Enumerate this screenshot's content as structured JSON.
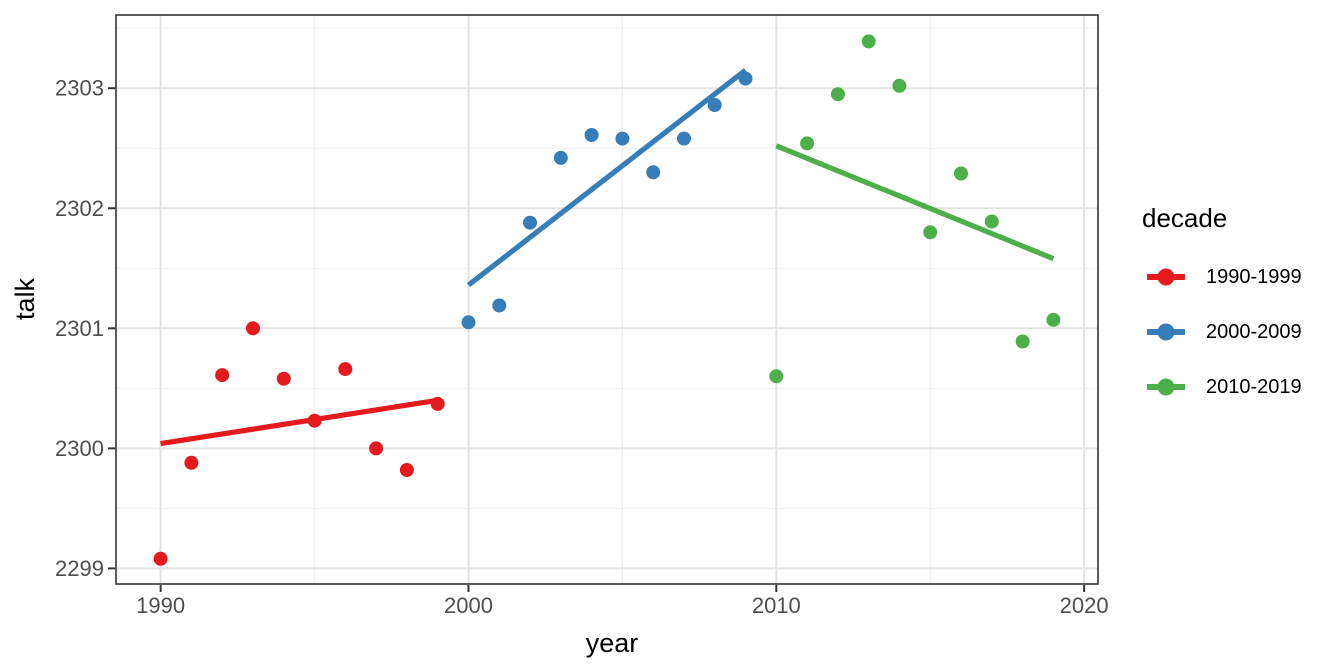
{
  "chart_data": {
    "type": "scatter",
    "title": "",
    "xlabel": "year",
    "ylabel": "talk",
    "legend_title": "decade",
    "legend_position": "right",
    "grid": true,
    "xlim": [
      1988.55,
      2020.45
    ],
    "ylim": [
      2298.87,
      2303.61
    ],
    "x_ticks": [
      {
        "value": 1990,
        "label": "1990"
      },
      {
        "value": 2000,
        "label": "2000"
      },
      {
        "value": 2010,
        "label": "2010"
      },
      {
        "value": 2020,
        "label": "2020"
      }
    ],
    "y_ticks": [
      {
        "value": 2299,
        "label": "2299"
      },
      {
        "value": 2300,
        "label": "2300"
      },
      {
        "value": 2301,
        "label": "2301"
      },
      {
        "value": 2302,
        "label": "2302"
      },
      {
        "value": 2303,
        "label": "2303"
      }
    ],
    "x_minor_ticks": [
      1995,
      2005,
      2015
    ],
    "y_minor_ticks": [
      2299.5,
      2300.5,
      2301.5,
      2302.5,
      2303.5
    ],
    "series": [
      {
        "name": "1990-1999",
        "color": "#E41A1C",
        "x": [
          1990,
          1991,
          1992,
          1993,
          1994,
          1995,
          1996,
          1997,
          1998,
          1999
        ],
        "y": [
          2299.08,
          2299.88,
          2300.61,
          2301.0,
          2300.58,
          2300.23,
          2300.66,
          2300.0,
          2299.82,
          2300.37
        ],
        "trend": {
          "x": [
            1990,
            1999
          ],
          "y": [
            2300.04,
            2300.4
          ]
        }
      },
      {
        "name": "2000-2009",
        "color": "#377EB8",
        "x": [
          2000,
          2001,
          2002,
          2003,
          2004,
          2005,
          2006,
          2007,
          2008,
          2009
        ],
        "y": [
          2301.05,
          2301.19,
          2301.88,
          2302.42,
          2302.61,
          2302.58,
          2302.3,
          2302.58,
          2302.86,
          2303.08
        ],
        "trend": {
          "x": [
            2000,
            2009
          ],
          "y": [
            2301.36,
            2303.15
          ]
        }
      },
      {
        "name": "2010-2019",
        "color": "#4DAF4A",
        "x": [
          2010,
          2011,
          2012,
          2013,
          2014,
          2015,
          2016,
          2017,
          2018,
          2019
        ],
        "y": [
          2300.6,
          2302.54,
          2302.95,
          2303.39,
          2303.02,
          2301.8,
          2302.29,
          2301.89,
          2300.89,
          2301.07
        ],
        "trend": {
          "x": [
            2010,
            2019
          ],
          "y": [
            2302.52,
            2301.58
          ]
        }
      }
    ]
  },
  "theme": {
    "panel_background": "#FFFFFF",
    "panel_border": "#333333",
    "grid_major": "#E3E3E3",
    "grid_minor": "#F0F0F0",
    "tick_color": "#333333",
    "tick_label_color": "#4D4D4D",
    "title_color": "#000000"
  }
}
